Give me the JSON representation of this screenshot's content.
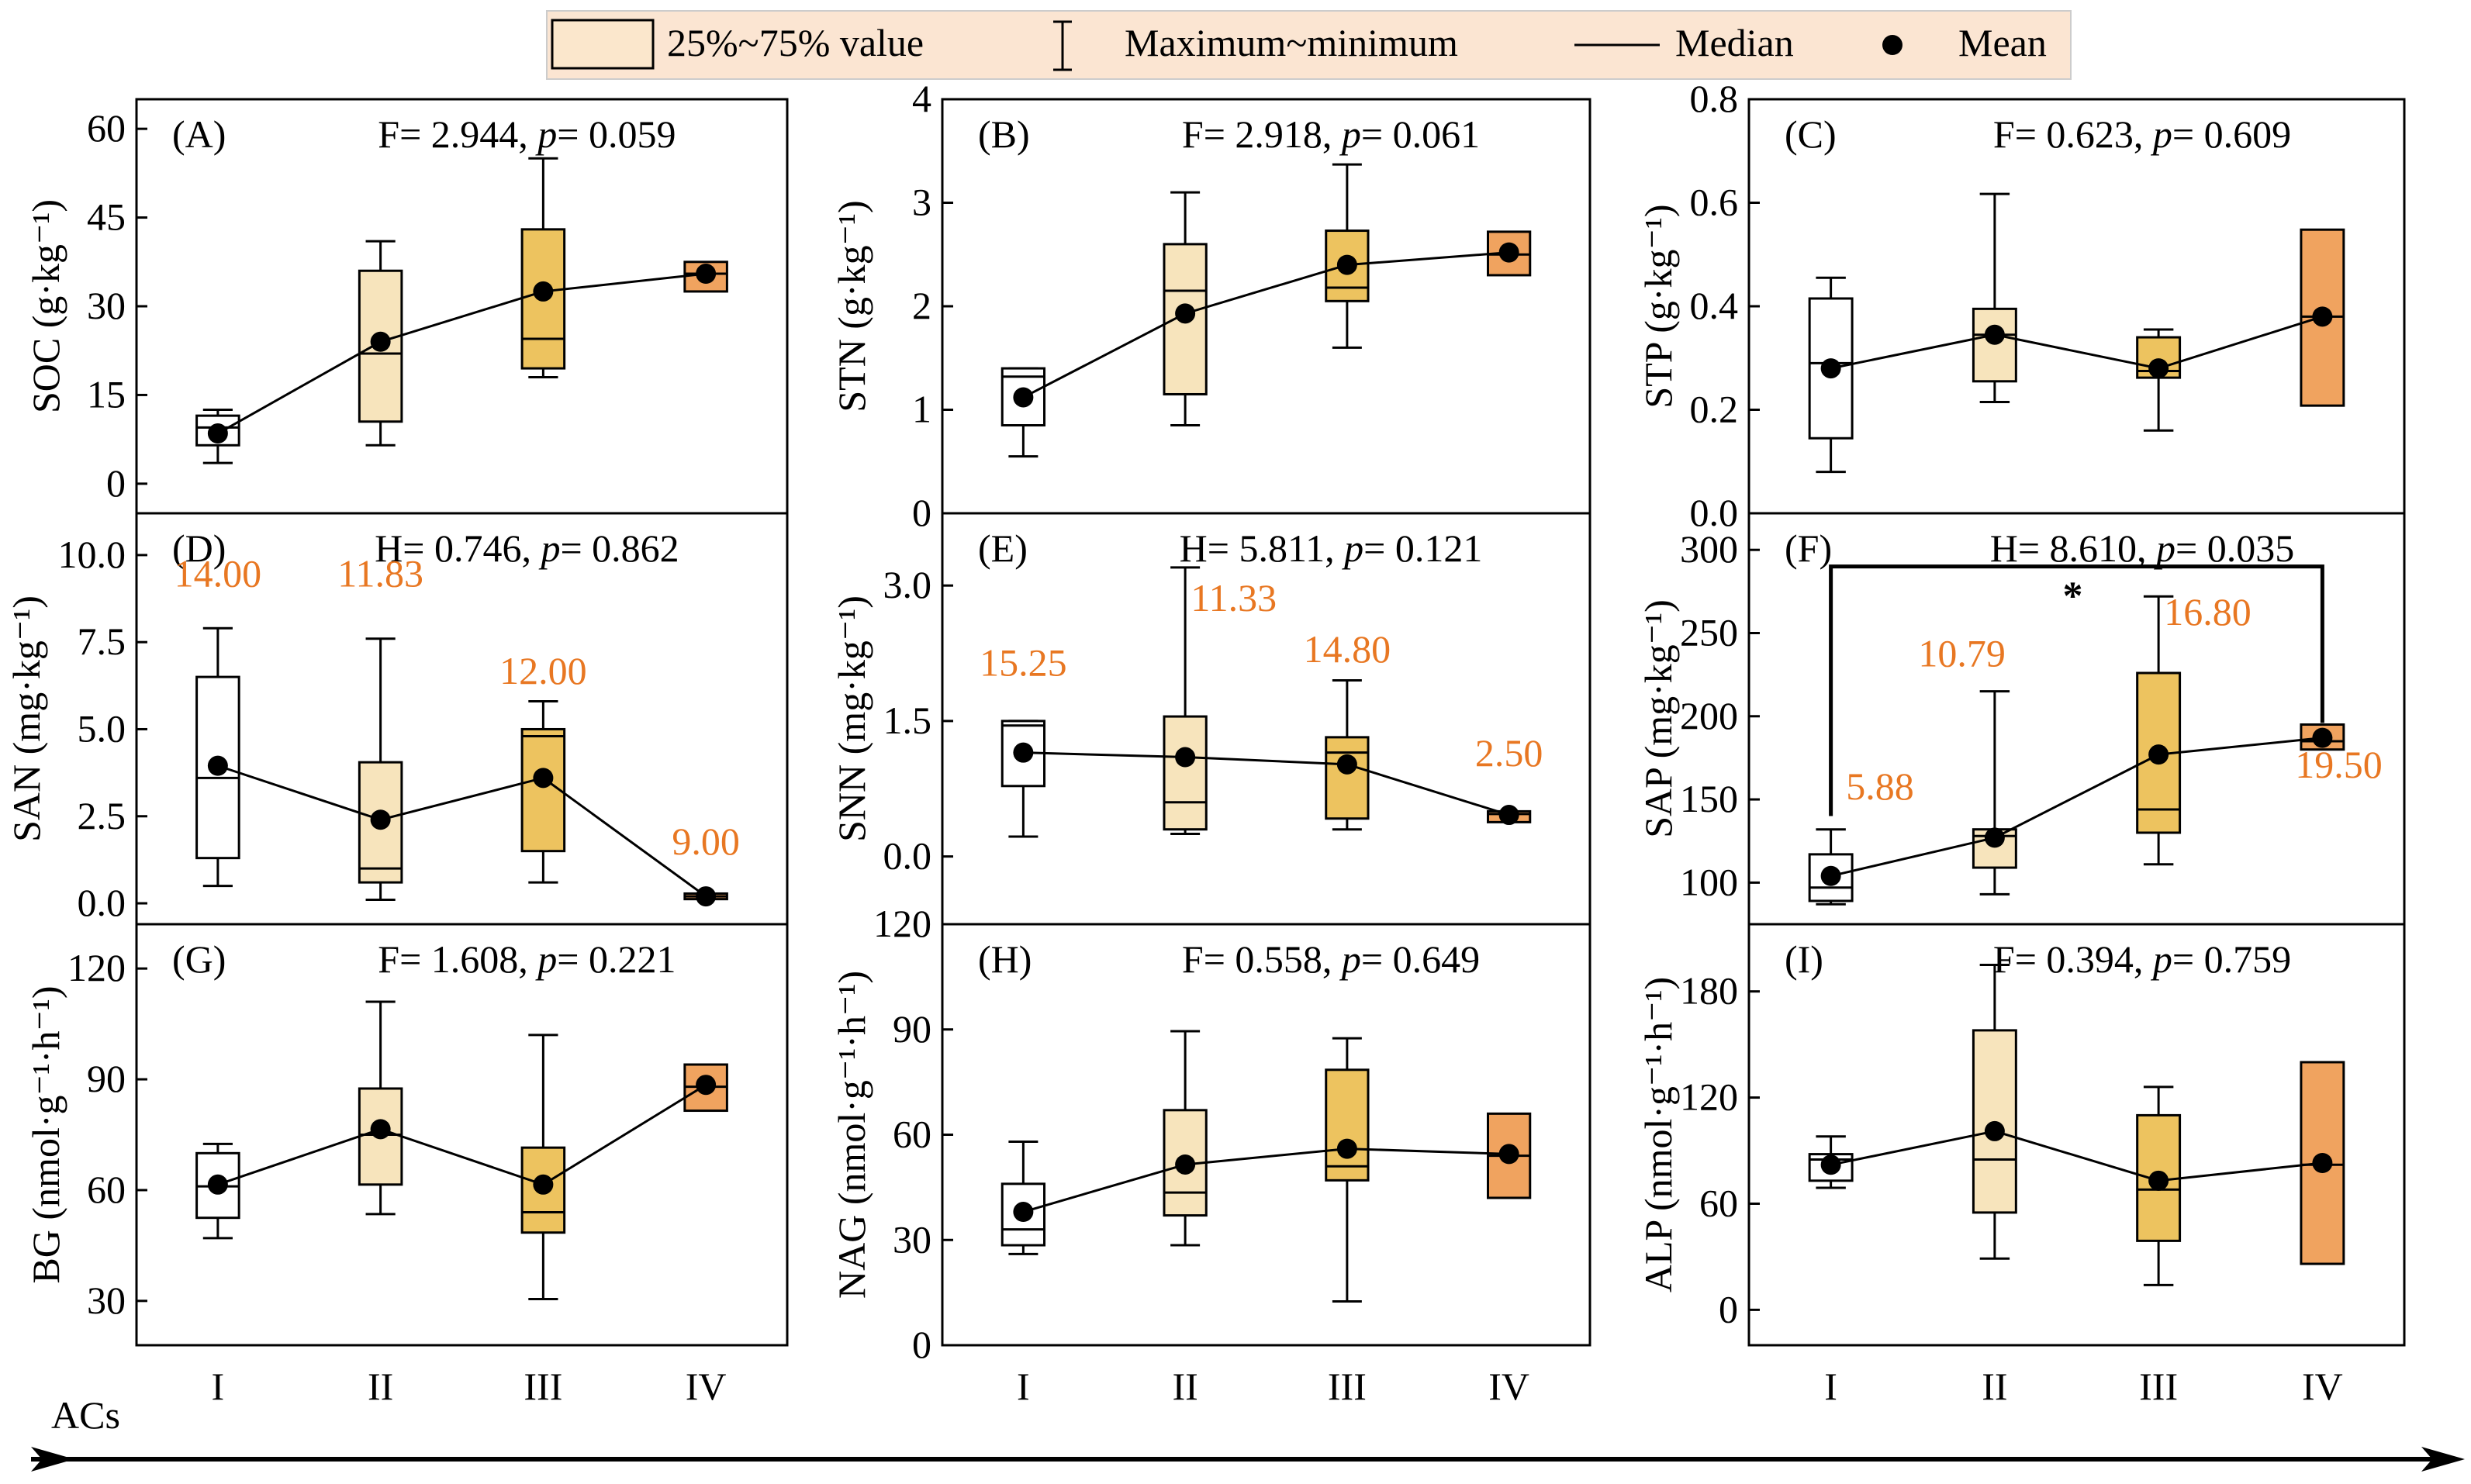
{
  "legend": {
    "box_label": "25%~75% value",
    "whisker_label": "Maximum~minimum",
    "median_label": "Median",
    "mean_label": "Mean"
  },
  "colors": {
    "I": "#FFFFFF",
    "II": "#F7E4BC",
    "III": "#EDC35F",
    "IV": "#F0A35F",
    "annotation": "#E87722",
    "legend_bg": "#FBE5D2"
  },
  "x_axis": {
    "label": "ACs"
  },
  "chart_data": [
    {
      "id": "A",
      "type": "box",
      "panel_label": "(A)",
      "ylabel": "SOC (g·kg⁻¹)",
      "stat_prefix": "F= 2.944, ",
      "stat_p": "p",
      "stat_suffix": "= 0.059",
      "ylim": [
        -5,
        65
      ],
      "yticks": [
        "0",
        "15",
        "30",
        "45",
        "60"
      ],
      "categories": [
        "I",
        "II",
        "III",
        "IV"
      ],
      "boxes": [
        {
          "min": 3.5,
          "q1": 6.5,
          "median": 9.5,
          "q3": 11.5,
          "max": 12.5,
          "mean": 8.5
        },
        {
          "min": 6.5,
          "q1": 10.5,
          "median": 22,
          "q3": 36,
          "max": 41,
          "mean": 24
        },
        {
          "min": 18,
          "q1": 19.5,
          "median": 24.5,
          "q3": 43,
          "max": 55,
          "mean": 32.5
        },
        {
          "min": null,
          "q1": 32.5,
          "median": 35.5,
          "q3": 37.5,
          "max": null,
          "mean": 35.5
        }
      ]
    },
    {
      "id": "B",
      "type": "box",
      "panel_label": "(B)",
      "ylabel": "STN (g·kg⁻¹)",
      "stat_prefix": "F= 2.918, ",
      "stat_p": "p",
      "stat_suffix": "= 0.061",
      "ylim": [
        0,
        4
      ],
      "yticks": [
        "0",
        "1",
        "2",
        "3",
        "4"
      ],
      "categories": [
        "I",
        "II",
        "III",
        "IV"
      ],
      "boxes": [
        {
          "min": 0.55,
          "q1": 0.85,
          "median": 1.32,
          "q3": 1.4,
          "max": 1.4,
          "mean": 1.12
        },
        {
          "min": 0.85,
          "q1": 1.15,
          "median": 2.15,
          "q3": 2.6,
          "max": 3.1,
          "mean": 1.93
        },
        {
          "min": 1.6,
          "q1": 2.05,
          "median": 2.18,
          "q3": 2.73,
          "max": 3.37,
          "mean": 2.4
        },
        {
          "min": null,
          "q1": 2.3,
          "median": 2.5,
          "q3": 2.72,
          "max": null,
          "mean": 2.52
        }
      ]
    },
    {
      "id": "C",
      "type": "box",
      "panel_label": "(C)",
      "ylabel": "STP (g·kg⁻¹)",
      "stat_prefix": "F= 0.623, ",
      "stat_p": "p",
      "stat_suffix": "= 0.609",
      "ylim": [
        0,
        0.8
      ],
      "yticks": [
        "0.0",
        "0.2",
        "0.4",
        "0.6",
        "0.8"
      ],
      "categories": [
        "I",
        "II",
        "III",
        "IV"
      ],
      "boxes": [
        {
          "min": 0.08,
          "q1": 0.145,
          "median": 0.29,
          "q3": 0.415,
          "max": 0.455,
          "mean": 0.28
        },
        {
          "min": 0.215,
          "q1": 0.255,
          "median": 0.345,
          "q3": 0.395,
          "max": 0.617,
          "mean": 0.345
        },
        {
          "min": 0.16,
          "q1": 0.262,
          "median": 0.275,
          "q3": 0.34,
          "max": 0.355,
          "mean": 0.28
        },
        {
          "min": null,
          "q1": 0.208,
          "median": 0.38,
          "q3": 0.548,
          "max": null,
          "mean": 0.38
        }
      ]
    },
    {
      "id": "D",
      "type": "box",
      "panel_label": "(D)",
      "ylabel": "SAN (mg·kg⁻¹)",
      "stat_prefix": "H= 0.746, ",
      "stat_p": "p",
      "stat_suffix": "= 0.862",
      "ylim": [
        -0.6,
        11.2
      ],
      "yticks": [
        "0.0",
        "2.5",
        "5.0",
        "7.5",
        "10.0"
      ],
      "categories": [
        "I",
        "II",
        "III",
        "IV"
      ],
      "boxes": [
        {
          "min": 0.5,
          "q1": 1.3,
          "median": 3.6,
          "q3": 6.5,
          "max": 7.9,
          "mean": 3.95
        },
        {
          "min": 0.1,
          "q1": 0.6,
          "median": 1.0,
          "q3": 4.05,
          "max": 7.6,
          "mean": 2.4
        },
        {
          "min": 0.6,
          "q1": 1.5,
          "median": 4.8,
          "q3": 5.0,
          "max": 5.8,
          "mean": 3.6
        },
        {
          "min": null,
          "q1": 0.12,
          "median": 0.2,
          "q3": 0.28,
          "max": null,
          "mean": 0.2
        }
      ],
      "value_labels": [
        {
          "text": "14.00",
          "x": 1,
          "y": 9.1
        },
        {
          "text": "11.83",
          "x": 2,
          "y": 9.1
        },
        {
          "text": "12.00",
          "x": 3,
          "y": 6.3
        },
        {
          "text": "9.00",
          "x": 4,
          "y": 1.4
        }
      ]
    },
    {
      "id": "E",
      "type": "box",
      "panel_label": "(E)",
      "ylabel": "SNN (mg·kg⁻¹)",
      "stat_prefix": "H= 5.811, ",
      "stat_p": "p",
      "stat_suffix": "= 0.121",
      "ylim": [
        -0.75,
        3.8
      ],
      "yticks": [
        "0.0",
        "1.5",
        "3.0"
      ],
      "categories": [
        "I",
        "II",
        "III",
        "IV"
      ],
      "boxes": [
        {
          "min": 0.22,
          "q1": 0.78,
          "median": 1.45,
          "q3": 1.5,
          "max": 1.5,
          "mean": 1.15
        },
        {
          "min": 0.25,
          "q1": 0.3,
          "median": 0.6,
          "q3": 1.55,
          "max": 3.2,
          "mean": 1.1
        },
        {
          "min": 0.3,
          "q1": 0.42,
          "median": 1.15,
          "q3": 1.32,
          "max": 1.95,
          "mean": 1.02
        },
        {
          "min": null,
          "q1": 0.38,
          "median": 0.47,
          "q3": 0.5,
          "max": null,
          "mean": 0.46
        }
      ],
      "value_labels": [
        {
          "text": "15.25",
          "x": 1,
          "y": 2.0
        },
        {
          "text": "11.33",
          "x": 2.3,
          "y": 2.72
        },
        {
          "text": "14.80",
          "x": 3,
          "y": 2.15
        },
        {
          "text": "2.50",
          "x": 4,
          "y": 1.0
        }
      ]
    },
    {
      "id": "F",
      "type": "box",
      "panel_label": "(F)",
      "ylabel": "SAP (mg·kg⁻¹)",
      "stat_prefix": "H= 8.610, ",
      "stat_p": "p",
      "stat_suffix": "= 0.035",
      "ylim": [
        75,
        322
      ],
      "yticks": [
        "100",
        "150",
        "200",
        "250",
        "300"
      ],
      "categories": [
        "I",
        "II",
        "III",
        "IV"
      ],
      "boxes": [
        {
          "min": 87,
          "q1": 89,
          "median": 97,
          "q3": 117,
          "max": 132,
          "mean": 104
        },
        {
          "min": 93,
          "q1": 109,
          "median": 128,
          "q3": 132,
          "max": 215,
          "mean": 127
        },
        {
          "min": 111,
          "q1": 130,
          "median": 144,
          "q3": 226,
          "max": 272,
          "mean": 177
        },
        {
          "min": null,
          "q1": 180,
          "median": 185,
          "q3": 195,
          "max": null,
          "mean": 187
        }
      ],
      "value_labels": [
        {
          "text": "5.88",
          "x": 1.3,
          "y": 150
        },
        {
          "text": "10.79",
          "x": 1.8,
          "y": 230
        },
        {
          "text": "16.80",
          "x": 3.3,
          "y": 255
        },
        {
          "text": "19.50",
          "x": 4.1,
          "y": 163
        }
      ],
      "bracket": {
        "from": 1,
        "to": 4,
        "y": 290,
        "label": "*"
      }
    },
    {
      "id": "G",
      "type": "box",
      "panel_label": "(G)",
      "ylabel": "BG (nmol·g⁻¹·h⁻¹)",
      "stat_prefix": "F= 1.608, ",
      "stat_p": "p",
      "stat_suffix": "= 0.221",
      "ylim": [
        18,
        132
      ],
      "yticks": [
        "30",
        "60",
        "90",
        "120"
      ],
      "categories": [
        "I",
        "II",
        "III",
        "IV"
      ],
      "boxes": [
        {
          "min": 47,
          "q1": 52.5,
          "median": 61,
          "q3": 70,
          "max": 72.5,
          "mean": 61.5
        },
        {
          "min": 53.5,
          "q1": 61.5,
          "median": 75,
          "q3": 87.5,
          "max": 111,
          "mean": 76.5
        },
        {
          "min": 30.5,
          "q1": 48.5,
          "median": 54,
          "q3": 71.5,
          "max": 102,
          "mean": 61.5
        },
        {
          "min": null,
          "q1": 81.5,
          "median": 88,
          "q3": 94,
          "max": null,
          "mean": 88.5
        }
      ]
    },
    {
      "id": "H",
      "type": "box",
      "panel_label": "(H)",
      "ylabel": "NAG (nmol·g⁻¹·h⁻¹)",
      "stat_prefix": "F= 0.558, ",
      "stat_p": "p",
      "stat_suffix": "= 0.649",
      "ylim": [
        0,
        120
      ],
      "yticks": [
        "0",
        "30",
        "60",
        "90",
        "120"
      ],
      "categories": [
        "I",
        "II",
        "III",
        "IV"
      ],
      "boxes": [
        {
          "min": 26,
          "q1": 28.5,
          "median": 33,
          "q3": 46,
          "max": 58,
          "mean": 38
        },
        {
          "min": 28.5,
          "q1": 37,
          "median": 43.5,
          "q3": 67,
          "max": 89.5,
          "mean": 51.5
        },
        {
          "min": 12.5,
          "q1": 47,
          "median": 51,
          "q3": 78.5,
          "max": 87.5,
          "mean": 56
        },
        {
          "min": null,
          "q1": 42,
          "median": 54,
          "q3": 66,
          "max": null,
          "mean": 54.5
        }
      ]
    },
    {
      "id": "I",
      "type": "box",
      "panel_label": "(I)",
      "ylabel": "ALP (nmol·g⁻¹·h⁻¹)",
      "stat_prefix": "F= 0.394, ",
      "stat_p": "p",
      "stat_suffix": "= 0.759",
      "ylim": [
        -20,
        218
      ],
      "yticks": [
        "0",
        "60",
        "120",
        "180"
      ],
      "categories": [
        "I",
        "II",
        "III",
        "IV"
      ],
      "boxes": [
        {
          "min": 69,
          "q1": 73,
          "median": 85,
          "q3": 88,
          "max": 98,
          "mean": 82
        },
        {
          "min": 29,
          "q1": 55,
          "median": 85,
          "q3": 158,
          "max": 195,
          "mean": 101
        },
        {
          "min": 14,
          "q1": 39,
          "median": 68,
          "q3": 110,
          "max": 126,
          "mean": 73
        },
        {
          "min": null,
          "q1": 26,
          "median": 82,
          "q3": 140,
          "max": null,
          "mean": 83
        }
      ]
    }
  ]
}
